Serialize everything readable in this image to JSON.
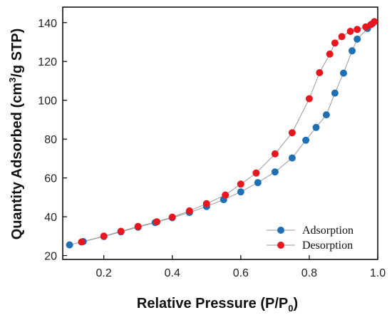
{
  "chart_data": {
    "type": "scatter",
    "xlabel": {
      "main": "Relative Pressure (P/P",
      "sub": "0",
      "close": ")"
    },
    "ylabel": {
      "pre": "Quantity Adsorbed (cm",
      "sup": "3",
      "post": "/g STP)"
    },
    "xlim": [
      0.08,
      1.0
    ],
    "ylim": [
      18,
      148
    ],
    "xticks": [
      0.2,
      0.4,
      0.6,
      0.8,
      1.0
    ],
    "xtick_labels": [
      "0.2",
      "0.4",
      "0.6",
      "0.8",
      "1.0"
    ],
    "yticks": [
      20,
      40,
      60,
      80,
      100,
      120,
      140
    ],
    "ytick_labels": [
      "20",
      "40",
      "60",
      "80",
      "100",
      "120",
      "140"
    ],
    "grid": false,
    "legend_position": "bottom-right",
    "series": [
      {
        "name": "Adsorption",
        "color": "#1f6fb5",
        "x": [
          0.1,
          0.14,
          0.2,
          0.25,
          0.3,
          0.35,
          0.4,
          0.45,
          0.5,
          0.55,
          0.6,
          0.65,
          0.7,
          0.75,
          0.79,
          0.82,
          0.85,
          0.875,
          0.9,
          0.925,
          0.94,
          0.97,
          0.985
        ],
        "y": [
          25.5,
          27.2,
          29.8,
          32.2,
          34.6,
          37.0,
          39.5,
          42.2,
          45.3,
          48.8,
          52.8,
          57.6,
          63.1,
          70.3,
          79.4,
          86.0,
          92.5,
          103.7,
          114.0,
          125.5,
          131.5,
          137.0,
          139.5
        ]
      },
      {
        "name": "Desorption",
        "color": "#e8161e",
        "x": [
          0.135,
          0.2,
          0.25,
          0.3,
          0.355,
          0.4,
          0.45,
          0.5,
          0.555,
          0.6,
          0.645,
          0.7,
          0.75,
          0.8,
          0.83,
          0.86,
          0.875,
          0.895,
          0.92,
          0.94,
          0.965,
          0.98,
          0.99
        ],
        "y": [
          27.0,
          30.0,
          32.5,
          35.0,
          37.4,
          39.8,
          43.0,
          46.7,
          51.2,
          56.8,
          62.5,
          72.4,
          83.3,
          100.8,
          114.2,
          123.8,
          129.5,
          132.8,
          135.5,
          136.5,
          137.8,
          139.0,
          140.5
        ]
      }
    ]
  }
}
